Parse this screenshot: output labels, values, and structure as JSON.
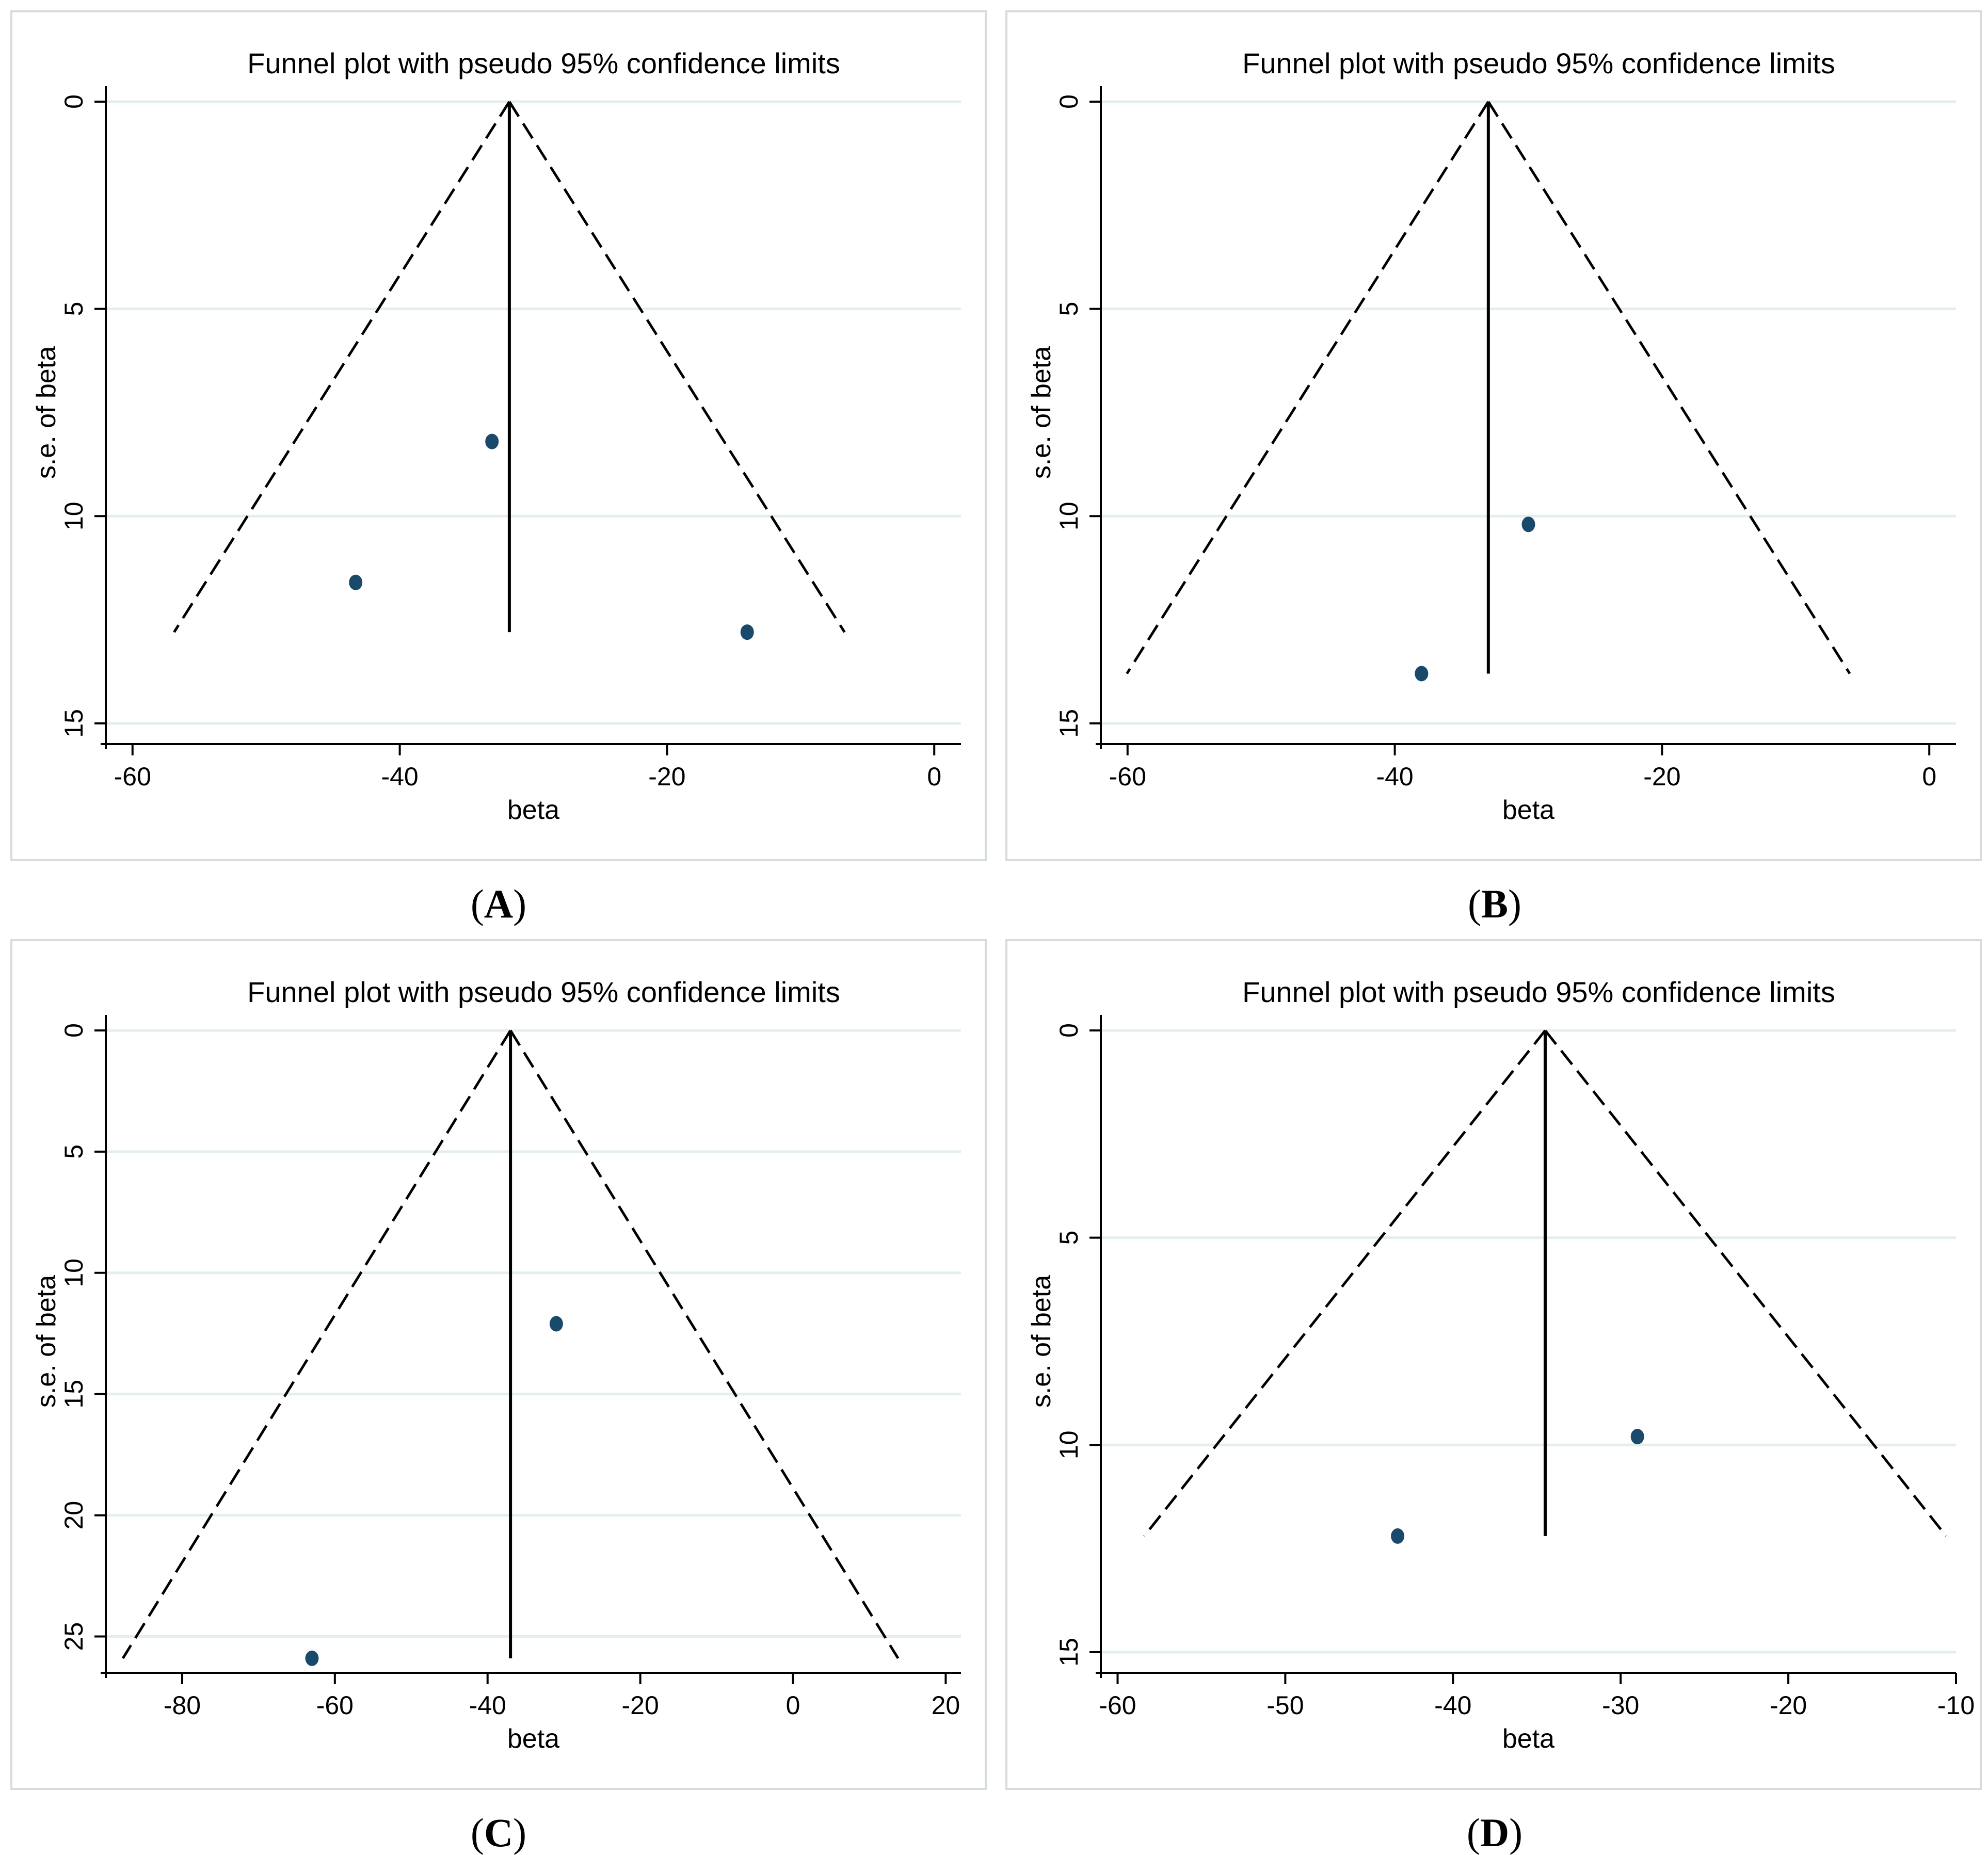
{
  "figure": {
    "panel_title": "Funnel plot with pseudo 95% confidence limits",
    "colors": {
      "point": "#1a4a6b",
      "grid": "#e4eeee",
      "frame": "#d6dcdc"
    }
  },
  "chart_data": [
    {
      "type": "scatter",
      "label": "A",
      "title": "Funnel plot with pseudo 95% confidence limits",
      "xlabel": "beta",
      "ylabel": "s.e. of beta",
      "xlim": [
        -62,
        2
      ],
      "ylim": [
        0,
        15.5
      ],
      "y_inverted": true,
      "grid": true,
      "xticks": [
        -60,
        -40,
        -20,
        0
      ],
      "yticks": [
        0,
        5,
        10,
        15
      ],
      "points": [
        {
          "x": -33.1,
          "y": 8.2
        },
        {
          "x": -43.3,
          "y": 11.6
        },
        {
          "x": -14.0,
          "y": 12.8
        }
      ],
      "pooled_estimate": -31.8,
      "max_se": 12.8
    },
    {
      "type": "scatter",
      "label": "B",
      "title": "Funnel plot with pseudo 95% confidence limits",
      "xlabel": "beta",
      "ylabel": "s.e. of beta",
      "xlim": [
        -62,
        2
      ],
      "ylim": [
        0,
        15.5
      ],
      "y_inverted": true,
      "grid": true,
      "xticks": [
        -60,
        -40,
        -20,
        0
      ],
      "yticks": [
        0,
        5,
        10,
        15
      ],
      "points": [
        {
          "x": -30.0,
          "y": 10.2
        },
        {
          "x": -38.0,
          "y": 13.8
        }
      ],
      "pooled_estimate": -33.0,
      "max_se": 13.8
    },
    {
      "type": "scatter",
      "label": "C",
      "title": "Funnel plot with pseudo 95% confidence limits",
      "xlabel": "beta",
      "ylabel": "s.e. of beta",
      "xlim": [
        -90,
        22
      ],
      "ylim": [
        0,
        26.5
      ],
      "y_inverted": true,
      "grid": true,
      "xticks": [
        -80,
        -60,
        -40,
        -20,
        0,
        20
      ],
      "yticks": [
        0,
        5,
        10,
        15,
        20,
        25
      ],
      "points": [
        {
          "x": -31.0,
          "y": 12.1
        },
        {
          "x": -63.0,
          "y": 25.9
        }
      ],
      "pooled_estimate": -37.0,
      "max_se": 25.9
    },
    {
      "type": "scatter",
      "label": "D",
      "title": "Funnel plot with pseudo 95% confidence limits",
      "xlabel": "beta",
      "ylabel": "s.e. of beta",
      "xlim": [
        -61,
        -10
      ],
      "ylim": [
        0,
        15.5
      ],
      "y_inverted": true,
      "grid": true,
      "xticks": [
        -60,
        -50,
        -40,
        -30,
        -20,
        -10
      ],
      "yticks": [
        0,
        5,
        10,
        15
      ],
      "points": [
        {
          "x": -29.0,
          "y": 9.8
        },
        {
          "x": -43.3,
          "y": 12.2
        }
      ],
      "pooled_estimate": -34.5,
      "max_se": 12.2
    }
  ],
  "captions": [
    {
      "open": "(",
      "letter": "A",
      "close": ")"
    },
    {
      "open": "(",
      "letter": "B",
      "close": ")"
    },
    {
      "open": "(",
      "letter": "C",
      "close": ")"
    },
    {
      "open": "(",
      "letter": "D",
      "close": ")"
    }
  ]
}
